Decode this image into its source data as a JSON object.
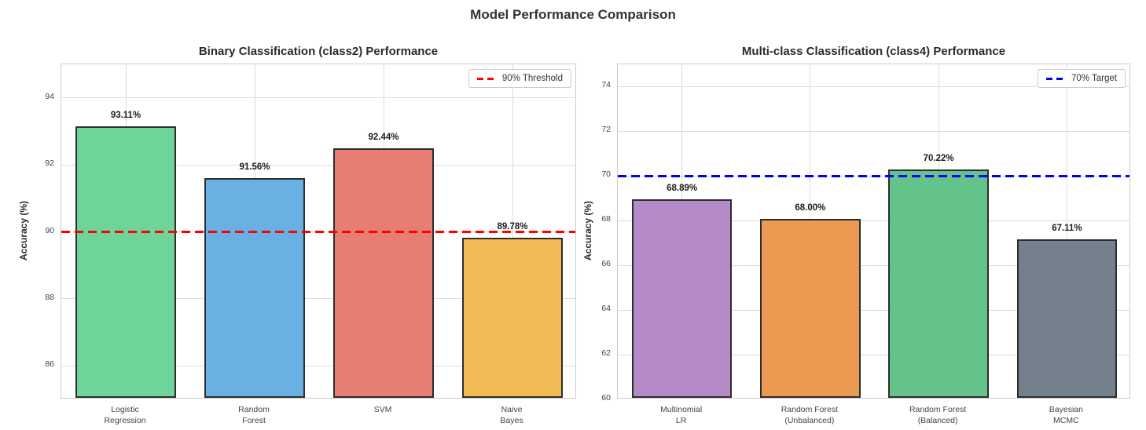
{
  "main_title": "Model Performance Comparison",
  "chart_data": [
    {
      "type": "bar",
      "title": "Binary Classification (class2) Performance",
      "ylabel": "Accuracy (%)",
      "ylim": [
        85,
        95
      ],
      "yticks": [
        86,
        88,
        90,
        92,
        94
      ],
      "categories": [
        "Logistic\nRegression",
        "Random\nForest",
        "SVM",
        "Naive\nBayes"
      ],
      "values": [
        93.11,
        91.56,
        92.44,
        89.78
      ],
      "value_labels": [
        "93.11%",
        "91.56%",
        "92.44%",
        "89.78%"
      ],
      "bar_colors": [
        "#6fd49a",
        "#68b1e2",
        "#e87e73",
        "#f3ba55"
      ],
      "bar_edge_color": "#2d2d2d",
      "grid": true,
      "legend_position": "upper right",
      "threshold": {
        "value": 90,
        "color": "#ff0000",
        "label": "90% Threshold"
      }
    },
    {
      "type": "bar",
      "title": "Multi-class Classification (class4) Performance",
      "ylabel": "Accuracy (%)",
      "ylim": [
        60,
        75
      ],
      "yticks": [
        60,
        62,
        64,
        66,
        68,
        70,
        72,
        74
      ],
      "categories": [
        "Multinomial\nLR",
        "Random Forest\n(Unbalanced)",
        "Random Forest\n(Balanced)",
        "Bayesian\nMCMC"
      ],
      "values": [
        68.89,
        68.0,
        70.22,
        67.11
      ],
      "value_labels": [
        "68.89%",
        "68.00%",
        "70.22%",
        "67.11%"
      ],
      "bar_colors": [
        "#b58ac8",
        "#ea9a51",
        "#64c28b",
        "#75808f"
      ],
      "bar_edge_color": "#2d2d2d",
      "grid": true,
      "legend_position": "upper right",
      "threshold": {
        "value": 70,
        "color": "#0000ff",
        "label": "70% Target"
      }
    }
  ],
  "colors": {
    "background": "#ffffff",
    "grid": "#dcdcdc",
    "spine": "#cccccc",
    "title_text": "#333333",
    "tick_text": "#444444"
  }
}
